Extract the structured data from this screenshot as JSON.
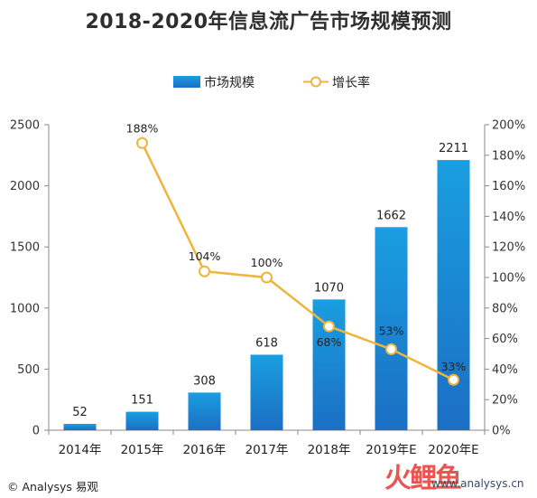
{
  "title": "2018-2020年信息流广告市场规模预测",
  "legend": {
    "bar": "市场规模",
    "line": "增长率"
  },
  "source": "© Analysys 易观",
  "watermark": {
    "logo": "火鲤鱼",
    "url": "www.analysys.cn"
  },
  "colors": {
    "bar_top": "#1a9ee0",
    "bar_bottom": "#1b6fc4",
    "line": "#f0b43c",
    "axis": "#888888",
    "grid": "#d9d9d9"
  },
  "chart_data": {
    "type": "bar",
    "title": "2018-2020年信息流广告市场规模预测",
    "categories": [
      "2014年",
      "2015年",
      "2016年",
      "2017年",
      "2018年",
      "2019年E",
      "2020年E"
    ],
    "series": [
      {
        "name": "市场规模",
        "type": "bar",
        "axis": "left",
        "values": [
          52,
          151,
          308,
          618,
          1070,
          1662,
          2211
        ]
      },
      {
        "name": "增长率",
        "type": "line",
        "axis": "right",
        "values": [
          null,
          188,
          104,
          100,
          68,
          53,
          33
        ]
      }
    ],
    "bar_labels": [
      "52",
      "151",
      "308",
      "618",
      "1070",
      "1662",
      "2211"
    ],
    "rate_labels": [
      null,
      "188%",
      "104%",
      "100%",
      "68%",
      "53%",
      "33%"
    ],
    "y_left": {
      "ylim": [
        0,
        2500
      ],
      "ticks": [
        0,
        500,
        1000,
        1500,
        2000,
        2500
      ],
      "tick_labels": [
        "0",
        "500",
        "1000",
        "1500",
        "2000",
        "2500"
      ]
    },
    "y_right": {
      "ylim": [
        0,
        200
      ],
      "ticks": [
        0,
        20,
        40,
        60,
        80,
        100,
        120,
        140,
        160,
        180,
        200
      ],
      "tick_labels": [
        "0%",
        "20%",
        "40%",
        "60%",
        "80%",
        "100%",
        "120%",
        "140%",
        "160%",
        "180%",
        "200%"
      ]
    },
    "legend_position": "top-center",
    "grid": false
  }
}
